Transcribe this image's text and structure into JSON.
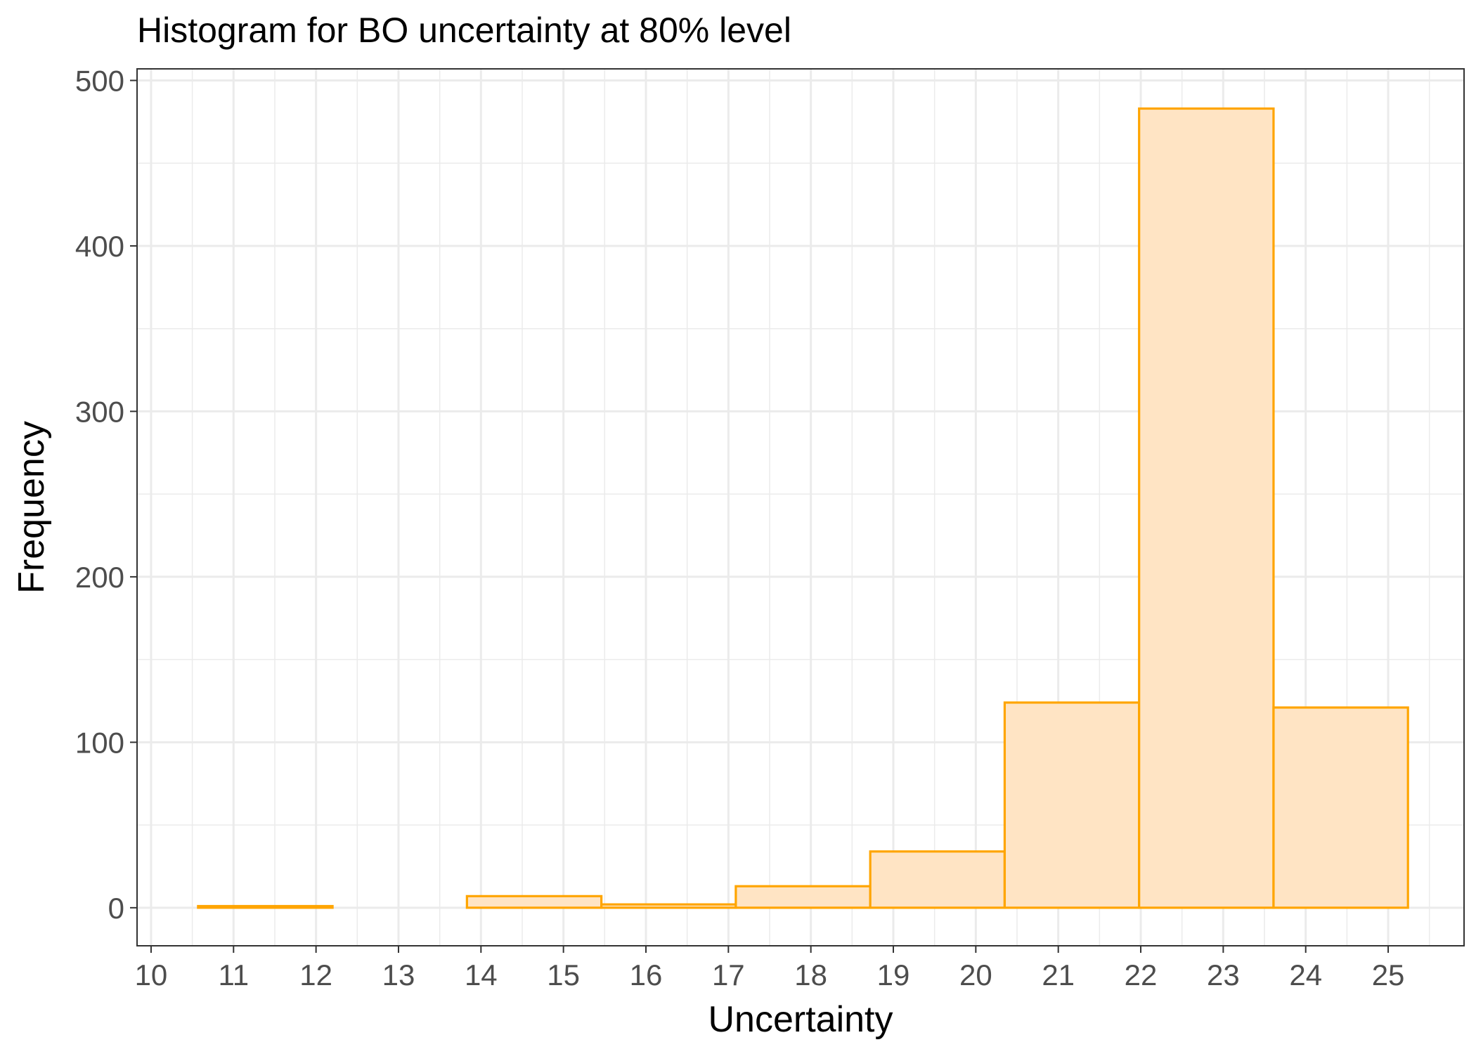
{
  "chart_data": {
    "type": "bar",
    "title": "Histogram for BO uncertainty at 80% level",
    "xlabel": "Uncertainty",
    "ylabel": "Frequency",
    "xlim": [
      9.83,
      25.92
    ],
    "ylim": [
      -23,
      507
    ],
    "x_ticks": [
      10,
      11,
      12,
      13,
      14,
      15,
      16,
      17,
      18,
      19,
      20,
      21,
      22,
      23,
      24,
      25
    ],
    "y_ticks": [
      0,
      100,
      200,
      300,
      400,
      500
    ],
    "bins": [
      {
        "x0": 10.57,
        "x1": 12.2,
        "count": 1
      },
      {
        "x0": 12.2,
        "x1": 13.83,
        "count": 0
      },
      {
        "x0": 13.83,
        "x1": 15.46,
        "count": 7
      },
      {
        "x0": 15.46,
        "x1": 17.09,
        "count": 2
      },
      {
        "x0": 17.09,
        "x1": 18.72,
        "count": 13
      },
      {
        "x0": 18.72,
        "x1": 20.35,
        "count": 34
      },
      {
        "x0": 20.35,
        "x1": 21.98,
        "count": 124
      },
      {
        "x0": 21.98,
        "x1": 23.61,
        "count": 483
      },
      {
        "x0": 23.61,
        "x1": 25.24,
        "count": 121
      }
    ],
    "fill_color": "#ffe4c4",
    "stroke_color": "#ffa500",
    "grid": true,
    "legend": "none"
  }
}
